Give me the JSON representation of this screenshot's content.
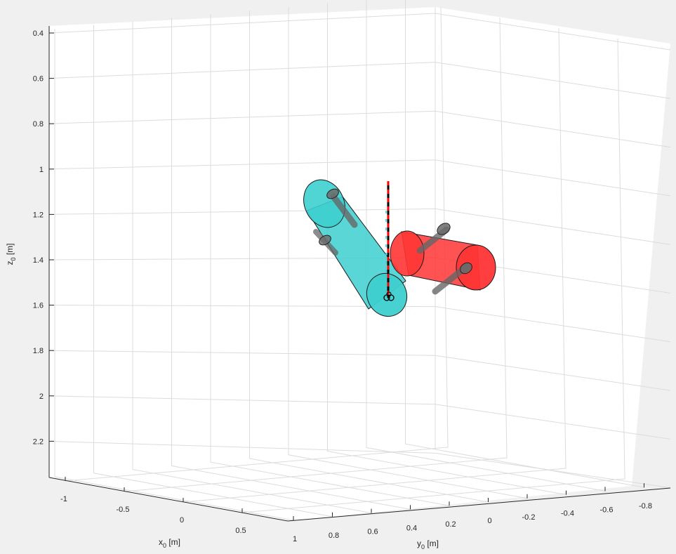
{
  "chart_data": {
    "type": "3d-scene",
    "title": "",
    "axes": {
      "z": {
        "label": "z",
        "label_sub": "0",
        "label_unit": " [m]",
        "reversed": true,
        "ticks": [
          "0.4",
          "0.6",
          "0.8",
          "1",
          "1.2",
          "1.4",
          "1.6",
          "1.8",
          "2",
          "2.2"
        ]
      },
      "x": {
        "label": "x",
        "label_sub": "0",
        "label_unit": " [m]",
        "ticks": [
          "-1",
          "-0.5",
          "0",
          "0.5"
        ]
      },
      "y": {
        "label": "y",
        "label_sub": "0",
        "label_unit": " [m]",
        "ticks": [
          "1",
          "0.8",
          "0.6",
          "0.4",
          "0.2",
          "0",
          "-0.2",
          "-0.4",
          "-0.6",
          "-0.8"
        ]
      }
    },
    "grid": true,
    "objects": [
      {
        "name": "cyan-cylinder",
        "color": "#3ecfcf",
        "opacity": 0.85
      },
      {
        "name": "red-cylinder",
        "color": "#ff3535",
        "opacity": 0.85
      },
      {
        "name": "vertical-dashed-line",
        "colors": [
          "#000000",
          "#ff0000"
        ]
      },
      {
        "name": "grey-shafts",
        "color": "#666666"
      }
    ]
  }
}
